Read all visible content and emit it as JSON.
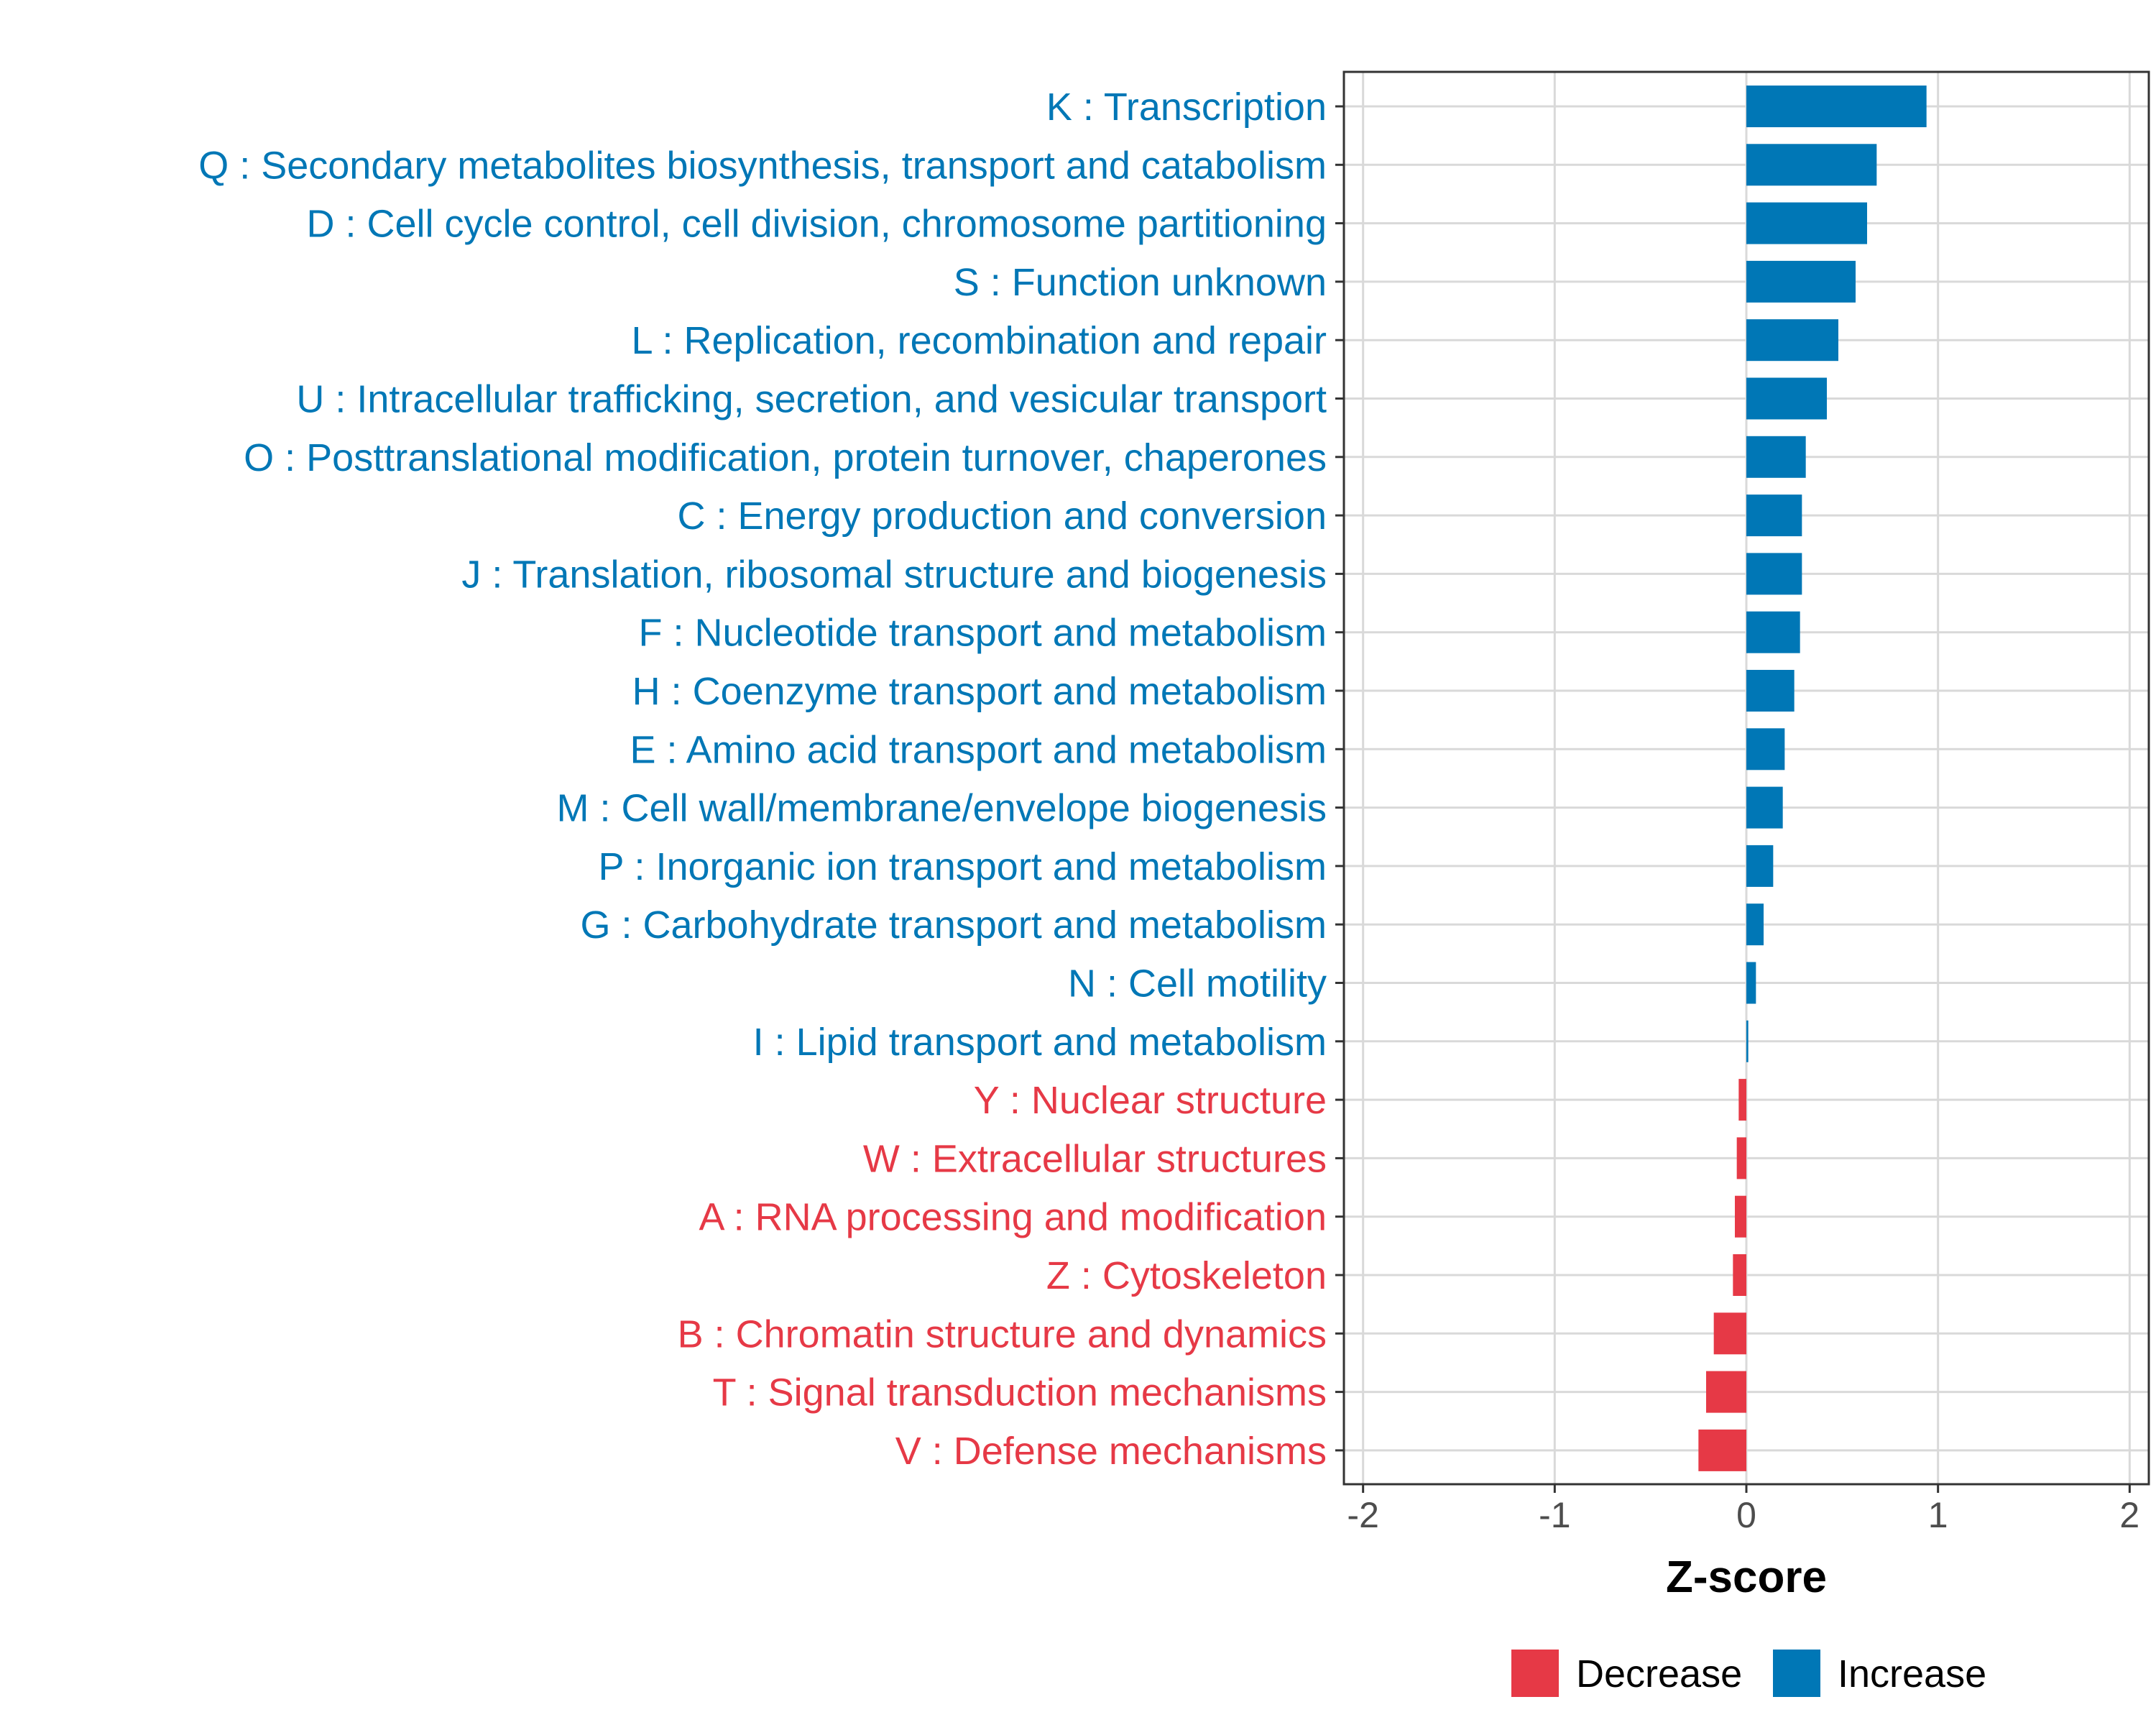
{
  "chart_data": {
    "type": "bar",
    "orientation": "horizontal",
    "title": "",
    "xlabel": "Z-score",
    "ylabel": "",
    "xlim": [
      -2.1,
      2.1
    ],
    "xticks": [
      -2,
      -1,
      0,
      1,
      2
    ],
    "xtick_labels": [
      "-2",
      "-1",
      "0",
      "1",
      "2"
    ],
    "grid": true,
    "legend_position": "bottom",
    "colors": {
      "Decrease": "#E63946",
      "Increase": "#0077B6",
      "grid": "#d9d9d9",
      "axis": "#333333"
    },
    "legend": [
      {
        "name": "Decrease",
        "color": "#E63946"
      },
      {
        "name": "Increase",
        "color": "#0077B6"
      }
    ],
    "categories": [
      "K : Transcription",
      "Q : Secondary metabolites biosynthesis, transport and catabolism",
      "D : Cell cycle control, cell division, chromosome partitioning",
      "S : Function unknown",
      "L : Replication, recombination and repair",
      "U : Intracellular trafficking, secretion, and vesicular transport",
      "O : Posttranslational modification, protein turnover, chaperones",
      "C : Energy production and conversion",
      "J : Translation, ribosomal structure and biogenesis",
      "F : Nucleotide transport and metabolism",
      "H : Coenzyme transport and metabolism",
      "E : Amino acid transport and metabolism",
      "M : Cell wall/membrane/envelope biogenesis",
      "P : Inorganic ion transport and metabolism",
      "G : Carbohydrate transport and metabolism",
      "N : Cell motility",
      "I : Lipid transport and metabolism",
      "Y : Nuclear structure",
      "W : Extracellular structures",
      "A : RNA processing and modification",
      "Z : Cytoskeleton",
      "B : Chromatin structure and dynamics",
      "T : Signal transduction mechanisms",
      "V : Defense mechanisms"
    ],
    "values": [
      0.94,
      0.68,
      0.63,
      0.57,
      0.48,
      0.42,
      0.31,
      0.29,
      0.29,
      0.28,
      0.25,
      0.2,
      0.19,
      0.14,
      0.09,
      0.05,
      0.01,
      -0.04,
      -0.05,
      -0.06,
      -0.07,
      -0.17,
      -0.21,
      -0.25
    ],
    "groups": [
      "Increase",
      "Increase",
      "Increase",
      "Increase",
      "Increase",
      "Increase",
      "Increase",
      "Increase",
      "Increase",
      "Increase",
      "Increase",
      "Increase",
      "Increase",
      "Increase",
      "Increase",
      "Increase",
      "Increase",
      "Decrease",
      "Decrease",
      "Decrease",
      "Decrease",
      "Decrease",
      "Decrease",
      "Decrease"
    ]
  }
}
